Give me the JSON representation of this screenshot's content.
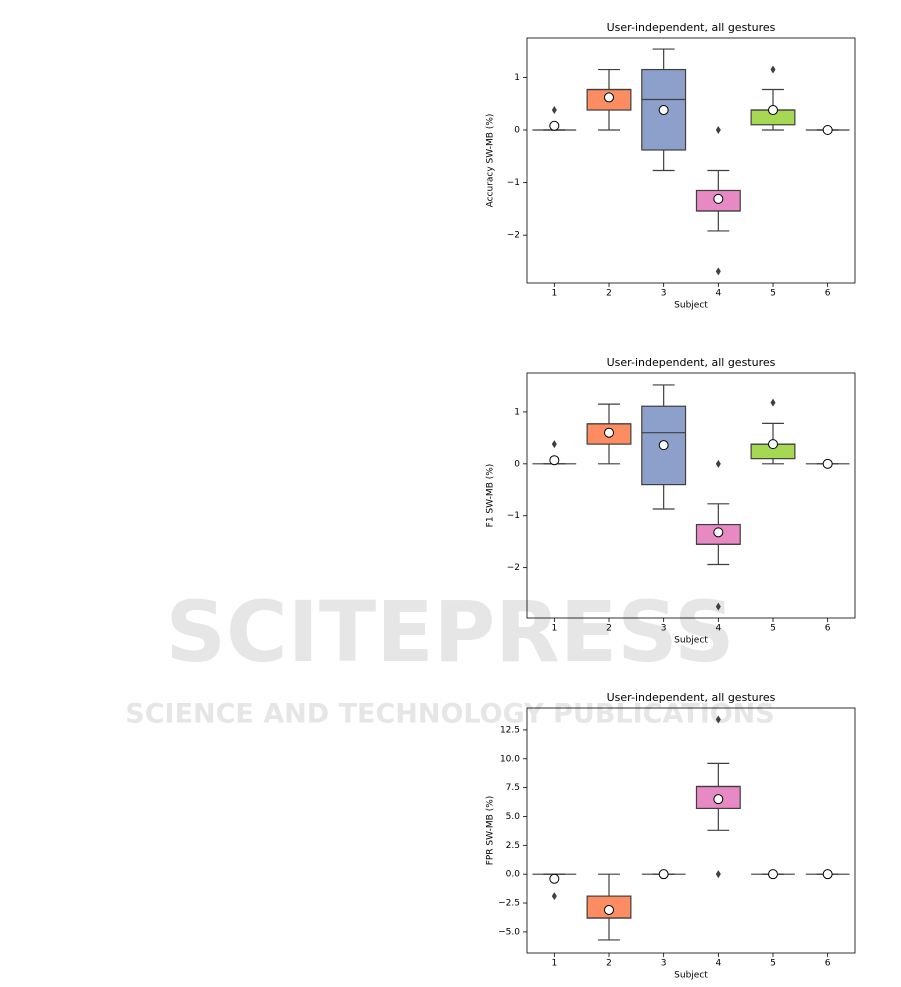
{
  "watermark": {
    "title": "SCITEPRESS",
    "subtitle": "SCIENCE AND TECHNOLOGY PUBLICATIONS"
  },
  "chart_data": [
    {
      "type": "box",
      "title": "User-independent, all gestures",
      "xlabel": "Subject",
      "ylabel": "Accuracy SW-MB (%)",
      "categories": [
        "1",
        "2",
        "3",
        "4",
        "5",
        "6"
      ],
      "colors": [
        "#66c2a5",
        "#fc8d62",
        "#8da0cb",
        "#e78ac3",
        "#a6d854",
        "#ffd92f"
      ],
      "ylim": [
        -2.91,
        1.75
      ],
      "yticks": [
        {
          "value": -2,
          "label": "−2"
        },
        {
          "value": -1,
          "label": "−1"
        },
        0,
        1
      ],
      "boxes": [
        {
          "whislo": 0,
          "q1": 0,
          "med": 0,
          "q3": 0,
          "whishi": 0,
          "mean": 0.08,
          "fliers": [
            0.38
          ]
        },
        {
          "whislo": 0,
          "q1": 0.38,
          "med": 0.77,
          "q3": 0.77,
          "whishi": 1.15,
          "mean": 0.62,
          "fliers": []
        },
        {
          "whislo": -0.77,
          "q1": -0.38,
          "med": 0.58,
          "q3": 1.15,
          "whishi": 1.54,
          "mean": 0.38,
          "fliers": []
        },
        {
          "whislo": -1.92,
          "q1": -1.54,
          "med": -1.54,
          "q3": -1.15,
          "whishi": -0.77,
          "mean": -1.31,
          "fliers": [
            0,
            -2.69
          ]
        },
        {
          "whislo": 0,
          "q1": 0.1,
          "med": 0.38,
          "q3": 0.38,
          "whishi": 0.77,
          "mean": 0.38,
          "fliers": [
            1.15
          ]
        },
        {
          "whislo": 0,
          "q1": 0,
          "med": 0,
          "q3": 0,
          "whishi": 0,
          "mean": 0,
          "fliers": []
        }
      ]
    },
    {
      "type": "box",
      "title": "User-independent, all gestures",
      "xlabel": "Subject",
      "ylabel": "F1 SW-MB (%)",
      "categories": [
        "1",
        "2",
        "3",
        "4",
        "5",
        "6"
      ],
      "colors": [
        "#66c2a5",
        "#fc8d62",
        "#8da0cb",
        "#e78ac3",
        "#a6d854",
        "#ffd92f"
      ],
      "ylim": [
        -2.97,
        1.75
      ],
      "yticks": [
        {
          "value": -2,
          "label": "−2"
        },
        {
          "value": -1,
          "label": "−1"
        },
        0,
        1
      ],
      "boxes": [
        {
          "whislo": 0,
          "q1": 0,
          "med": 0,
          "q3": 0,
          "whishi": 0,
          "mean": 0.07,
          "fliers": [
            0.38
          ]
        },
        {
          "whislo": 0,
          "q1": 0.38,
          "med": 0.77,
          "q3": 0.77,
          "whishi": 1.15,
          "mean": 0.6,
          "fliers": []
        },
        {
          "whislo": -0.87,
          "q1": -0.4,
          "med": 0.6,
          "q3": 1.11,
          "whishi": 1.52,
          "mean": 0.36,
          "fliers": []
        },
        {
          "whislo": -1.94,
          "q1": -1.55,
          "med": -1.55,
          "q3": -1.17,
          "whishi": -0.77,
          "mean": -1.32,
          "fliers": [
            0,
            -2.75
          ]
        },
        {
          "whislo": 0,
          "q1": 0.1,
          "med": 0.38,
          "q3": 0.38,
          "whishi": 0.78,
          "mean": 0.38,
          "fliers": [
            1.18
          ]
        },
        {
          "whislo": 0,
          "q1": 0,
          "med": 0,
          "q3": 0,
          "whishi": 0,
          "mean": 0,
          "fliers": []
        }
      ]
    },
    {
      "type": "box",
      "title": "User-independent, all gestures",
      "xlabel": "Subject",
      "ylabel": "FPR SW-MB (%)",
      "categories": [
        "1",
        "2",
        "3",
        "4",
        "5",
        "6"
      ],
      "colors": [
        "#66c2a5",
        "#fc8d62",
        "#8da0cb",
        "#e78ac3",
        "#a6d854",
        "#ffd92f"
      ],
      "ylim": [
        -6.83,
        14.4
      ],
      "yticks": [
        {
          "value": -5,
          "label": "−5.0"
        },
        {
          "value": -2.5,
          "label": "−2.5"
        },
        {
          "value": 0,
          "label": "0.0"
        },
        2.5,
        {
          "value": 5,
          "label": "5.0"
        },
        7.5,
        {
          "value": 10,
          "label": "10.0"
        },
        12.5
      ],
      "boxes": [
        {
          "whislo": 0,
          "q1": 0,
          "med": 0,
          "q3": 0,
          "whishi": 0,
          "mean": -0.4,
          "fliers": [
            -1.9
          ]
        },
        {
          "whislo": -5.7,
          "q1": -3.8,
          "med": -3.8,
          "q3": -1.9,
          "whishi": 0,
          "mean": -3.1,
          "fliers": []
        },
        {
          "whislo": 0,
          "q1": 0,
          "med": 0,
          "q3": 0,
          "whishi": 0,
          "mean": 0,
          "fliers": []
        },
        {
          "whislo": 3.8,
          "q1": 5.7,
          "med": 7.6,
          "q3": 7.6,
          "whishi": 9.6,
          "mean": 6.5,
          "fliers": [
            0,
            13.4
          ]
        },
        {
          "whislo": 0,
          "q1": 0,
          "med": 0,
          "q3": 0,
          "whishi": 0,
          "mean": 0,
          "fliers": []
        },
        {
          "whislo": 0,
          "q1": 0,
          "med": 0,
          "q3": 0,
          "whishi": 0,
          "mean": 0,
          "fliers": []
        }
      ]
    }
  ]
}
